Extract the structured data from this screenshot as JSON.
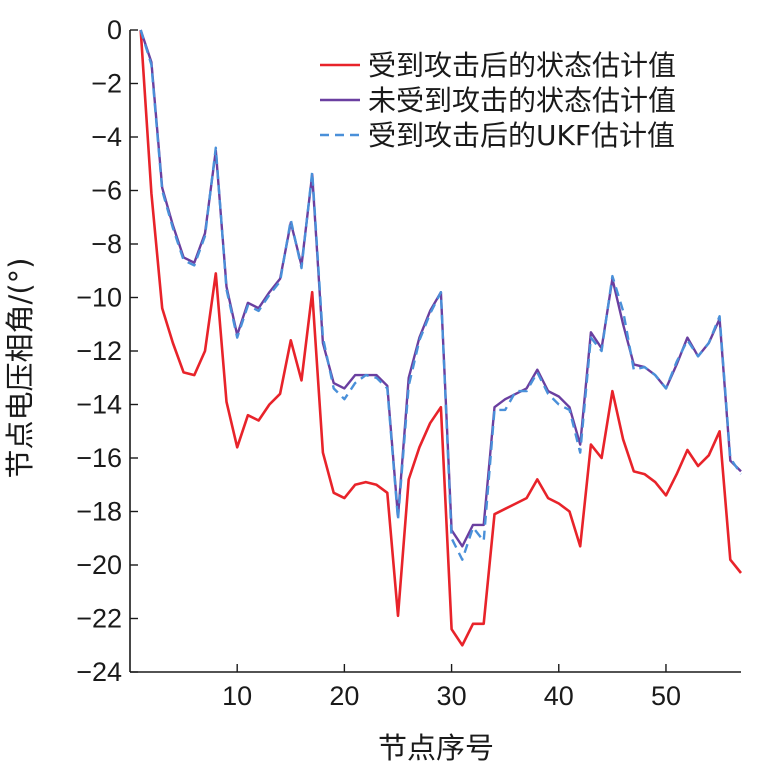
{
  "chart_data": {
    "type": "line",
    "xlabel": "节点序号",
    "ylabel": "节点电压相角/(°)",
    "xlim": [
      0,
      57
    ],
    "ylim": [
      -24,
      0
    ],
    "xticks": [
      10,
      20,
      30,
      40,
      50
    ],
    "yticks": [
      0,
      -2,
      -4,
      -6,
      -8,
      -10,
      -12,
      -14,
      -16,
      -18,
      -20,
      -22,
      -24
    ],
    "legend_position": "top-right",
    "x": [
      1,
      2,
      3,
      4,
      5,
      6,
      7,
      8,
      9,
      10,
      11,
      12,
      13,
      14,
      15,
      16,
      17,
      18,
      19,
      20,
      21,
      22,
      23,
      24,
      25,
      26,
      27,
      28,
      29,
      30,
      31,
      32,
      33,
      34,
      35,
      36,
      37,
      38,
      39,
      40,
      41,
      42,
      43,
      44,
      45,
      46,
      47,
      48,
      49,
      50,
      51,
      52,
      53,
      54,
      55,
      56,
      57
    ],
    "series": [
      {
        "name": "受到攻击后的状态估计值",
        "color": "#e8232a",
        "dash": "solid",
        "values": [
          0,
          -6.1,
          -10.4,
          -11.7,
          -12.8,
          -12.9,
          -12.0,
          -9.1,
          -13.9,
          -15.6,
          -14.4,
          -14.6,
          -14.0,
          -13.6,
          -11.6,
          -13.1,
          -9.8,
          -15.8,
          -17.3,
          -17.5,
          -17.0,
          -16.9,
          -17.0,
          -17.3,
          -21.9,
          -16.8,
          -15.6,
          -14.7,
          -14.1,
          -22.4,
          -23.0,
          -22.2,
          -22.2,
          -18.1,
          -17.9,
          -17.7,
          -17.5,
          -16.8,
          -17.5,
          -17.7,
          -18.0,
          -19.3,
          -15.5,
          -16.0,
          -13.5,
          -15.3,
          -16.5,
          -16.6,
          -16.9,
          -17.4,
          -16.6,
          -15.7,
          -16.3,
          -15.9,
          -15.0,
          -19.8,
          -20.3
        ]
      },
      {
        "name": "未受到攻击的状态估计值",
        "color": "#6a3fa0",
        "dash": "solid",
        "values": [
          0,
          -1.2,
          -5.9,
          -7.3,
          -8.5,
          -8.7,
          -7.6,
          -4.5,
          -9.6,
          -11.4,
          -10.2,
          -10.4,
          -9.8,
          -9.3,
          -7.2,
          -8.8,
          -5.4,
          -11.7,
          -13.2,
          -13.4,
          -12.9,
          -12.9,
          -12.9,
          -13.3,
          -18.2,
          -13.0,
          -11.5,
          -10.5,
          -9.8,
          -18.7,
          -19.3,
          -18.5,
          -18.5,
          -14.1,
          -13.8,
          -13.6,
          -13.4,
          -12.7,
          -13.5,
          -13.7,
          -14.1,
          -15.5,
          -11.3,
          -11.9,
          -9.3,
          -11.0,
          -12.5,
          -12.6,
          -12.9,
          -13.4,
          -12.5,
          -11.5,
          -12.2,
          -11.7,
          -10.8,
          -16.1,
          -16.5
        ]
      },
      {
        "name": "受到攻击后的UKF估计值",
        "color": "#4a90d9",
        "dash": "dashed",
        "values": [
          0,
          -1.3,
          -6.0,
          -7.4,
          -8.6,
          -8.8,
          -7.7,
          -4.4,
          -9.7,
          -11.5,
          -10.3,
          -10.5,
          -9.9,
          -9.4,
          -7.1,
          -8.9,
          -5.3,
          -11.5,
          -13.4,
          -13.8,
          -13.2,
          -12.9,
          -13.0,
          -13.4,
          -18.3,
          -13.3,
          -11.6,
          -10.6,
          -9.8,
          -19.0,
          -19.8,
          -18.6,
          -19.1,
          -14.2,
          -14.2,
          -13.5,
          -13.5,
          -12.8,
          -13.6,
          -14.0,
          -14.2,
          -15.8,
          -11.5,
          -12.0,
          -9.2,
          -10.5,
          -12.7,
          -12.6,
          -12.9,
          -13.4,
          -12.4,
          -11.6,
          -12.2,
          -11.7,
          -10.7,
          -16.0,
          -16.6
        ]
      }
    ]
  }
}
